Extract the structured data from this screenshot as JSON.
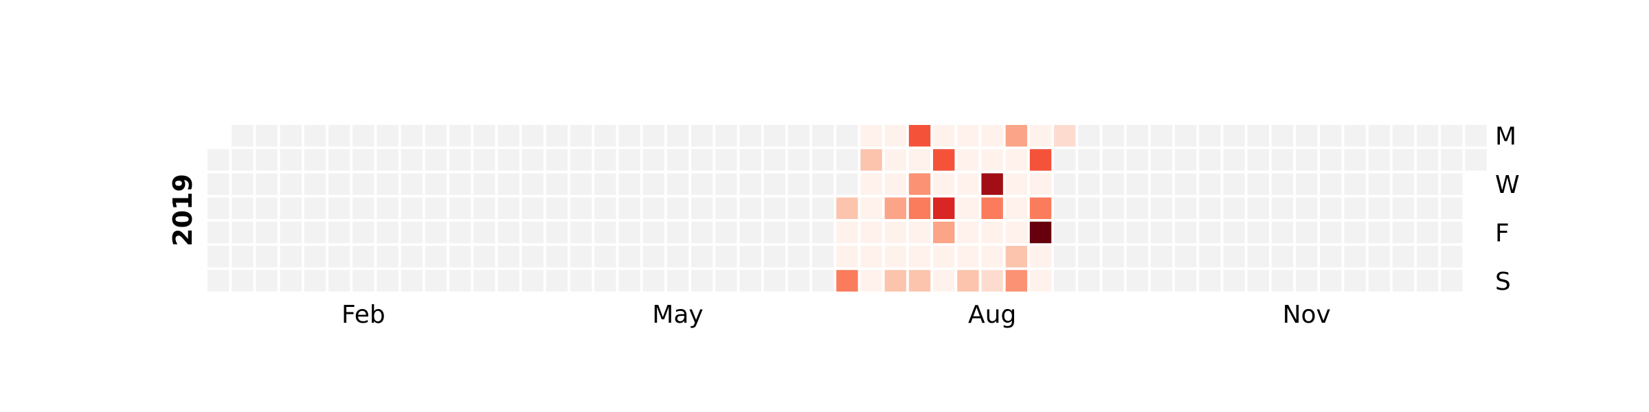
{
  "chart_data": {
    "type": "heatmap",
    "title": "",
    "year_label": "2019",
    "month_labels": [
      {
        "label": "Feb",
        "week": 6
      },
      {
        "label": "May",
        "week": 19
      },
      {
        "label": "Aug",
        "week": 32
      },
      {
        "label": "Nov",
        "week": 45
      }
    ],
    "day_labels": [
      {
        "label": "M",
        "row": 0
      },
      {
        "label": "W",
        "row": 2
      },
      {
        "label": "F",
        "row": 4
      },
      {
        "label": "S",
        "row": 6
      }
    ],
    "weeks": 53,
    "first_row": 1,
    "last_row": 1,
    "empty_color": "#f2f2f2",
    "colormap": "Reds",
    "grid": false,
    "active_cells": [
      [
        27,
        0,
        1
      ],
      [
        28,
        0,
        1
      ],
      [
        29,
        0,
        7
      ],
      [
        30,
        0,
        1
      ],
      [
        31,
        0,
        1
      ],
      [
        32,
        0,
        1
      ],
      [
        33,
        0,
        4
      ],
      [
        34,
        0,
        1
      ],
      [
        35,
        0,
        2
      ],
      [
        27,
        1,
        3
      ],
      [
        28,
        1,
        1
      ],
      [
        29,
        1,
        1
      ],
      [
        30,
        1,
        7
      ],
      [
        31,
        1,
        1
      ],
      [
        32,
        1,
        1
      ],
      [
        33,
        1,
        1
      ],
      [
        34,
        1,
        7
      ],
      [
        27,
        2,
        1
      ],
      [
        28,
        2,
        1
      ],
      [
        29,
        2,
        5
      ],
      [
        30,
        2,
        1
      ],
      [
        31,
        2,
        1
      ],
      [
        32,
        2,
        10
      ],
      [
        33,
        2,
        1
      ],
      [
        34,
        2,
        1
      ],
      [
        26,
        3,
        3
      ],
      [
        27,
        3,
        1
      ],
      [
        28,
        3,
        4
      ],
      [
        29,
        3,
        6
      ],
      [
        30,
        3,
        8
      ],
      [
        31,
        3,
        1
      ],
      [
        32,
        3,
        6
      ],
      [
        33,
        3,
        1
      ],
      [
        34,
        3,
        6
      ],
      [
        26,
        4,
        1
      ],
      [
        27,
        4,
        1
      ],
      [
        28,
        4,
        1
      ],
      [
        29,
        4,
        1
      ],
      [
        30,
        4,
        4
      ],
      [
        31,
        4,
        1
      ],
      [
        32,
        4,
        1
      ],
      [
        33,
        4,
        1
      ],
      [
        34,
        4,
        11
      ],
      [
        26,
        5,
        1
      ],
      [
        27,
        5,
        1
      ],
      [
        28,
        5,
        1
      ],
      [
        29,
        5,
        1
      ],
      [
        30,
        5,
        1
      ],
      [
        31,
        5,
        1
      ],
      [
        32,
        5,
        1
      ],
      [
        33,
        5,
        3
      ],
      [
        34,
        5,
        1
      ],
      [
        26,
        6,
        6
      ],
      [
        27,
        6,
        1
      ],
      [
        28,
        6,
        3
      ],
      [
        29,
        6,
        3
      ],
      [
        30,
        6,
        1
      ],
      [
        31,
        6,
        3
      ],
      [
        32,
        6,
        2
      ],
      [
        33,
        6,
        5
      ],
      [
        34,
        6,
        1
      ]
    ],
    "color_scale": {
      "1": "#fff2ec",
      "2": "#fddccf",
      "3": "#fcc4ad",
      "4": "#fca487",
      "5": "#fb9273",
      "6": "#fb7c5c",
      "7": "#f5523a",
      "8": "#d92523",
      "10": "#a10e15",
      "11": "#67000d"
    }
  }
}
